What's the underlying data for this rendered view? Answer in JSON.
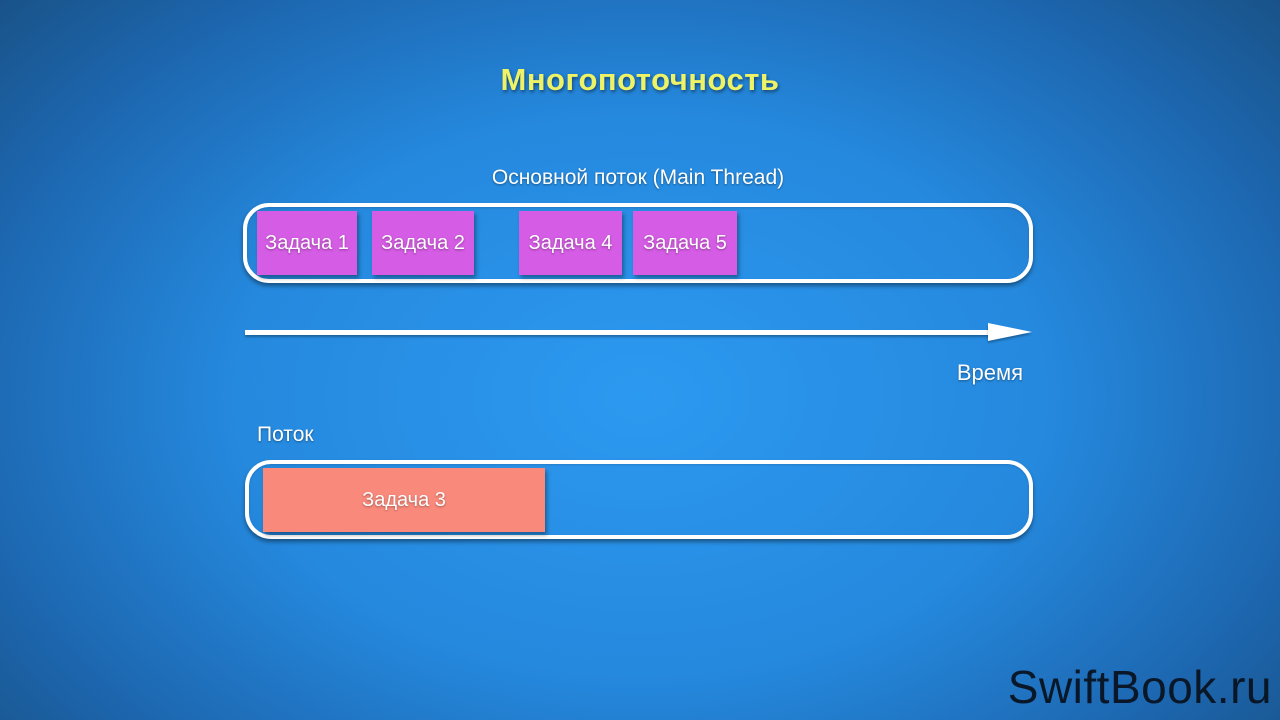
{
  "title": "Многопоточность",
  "main_thread": {
    "label": "Основной поток (Main Thread)",
    "tasks": [
      "Задача 1",
      "Задача 2",
      "Задача 4",
      "Задача 5"
    ]
  },
  "timeline": {
    "label": "Время"
  },
  "worker_thread": {
    "label": "Поток",
    "task": "Задача 3"
  },
  "watermark": "SwiftBook.ru",
  "colors": {
    "background_center": "#2c99f0",
    "background_edge": "#184e80",
    "title": "#edf266",
    "task_main": "#d55ce4",
    "task_worker": "#f9897b",
    "container_border": "#ffffff",
    "label_text": "#ffffff"
  }
}
